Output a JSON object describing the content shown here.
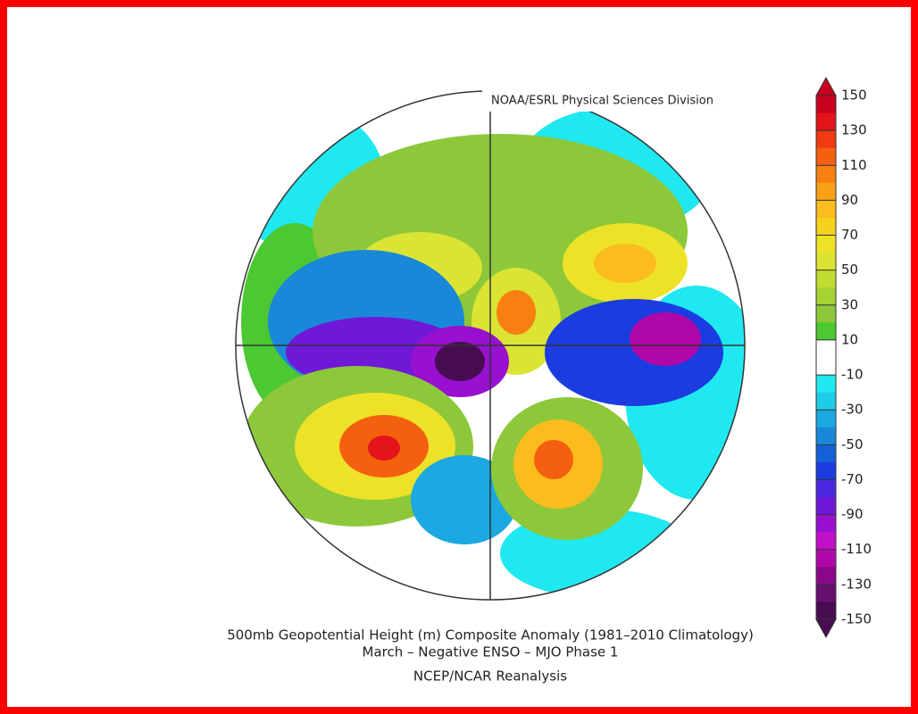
{
  "credit": "NOAA/ESRL Physical Sciences Division",
  "title": "500mb Geopotential Height (m) Composite Anomaly (1981–2010 Climatology)",
  "subtitle": "March – Negative ENSO – MJO Phase 1",
  "source": "NCEP/NCAR Reanalysis",
  "colorbar": {
    "ticks": [
      150,
      130,
      110,
      90,
      70,
      50,
      30,
      10,
      -10,
      -30,
      -50,
      -70,
      -90,
      -110,
      -130,
      -150
    ],
    "colors": [
      "#c8001e",
      "#e2141a",
      "#f03a10",
      "#f46010",
      "#f78010",
      "#f9a014",
      "#fbbc1e",
      "#f5d21e",
      "#eee228",
      "#dbe432",
      "#c2dc32",
      "#a6d232",
      "#8cc83a",
      "#4cc832",
      "#ffffff",
      "#ffffff",
      "#20e8f0",
      "#1ecce8",
      "#1ca8e0",
      "#1a88d8",
      "#1460d8",
      "#1a3ce0",
      "#4a28e0",
      "#7018d8",
      "#9810d0",
      "#c010c8",
      "#b008a8",
      "#880888",
      "#681070",
      "#480c50"
    ]
  }
}
